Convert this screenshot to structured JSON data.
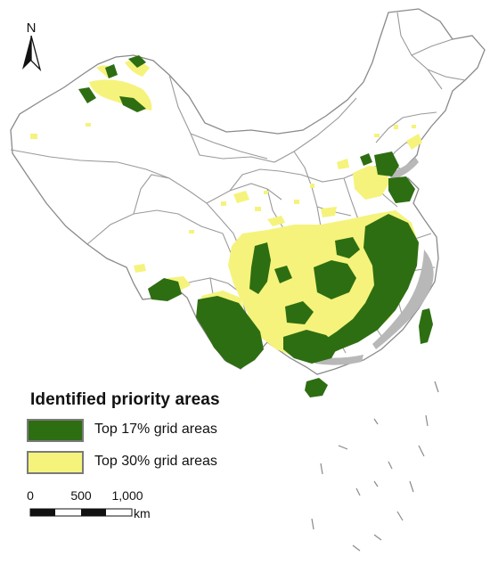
{
  "north_arrow": {
    "label": "N"
  },
  "legend": {
    "title": "Identified priority areas",
    "items": [
      {
        "label": "Top 17% grid areas",
        "color": "#2e6e12"
      },
      {
        "label": "Top 30% grid areas",
        "color": "#f5f37c"
      }
    ]
  },
  "scale_bar": {
    "ticks": [
      "0",
      "500",
      "1,000"
    ],
    "unit": "km"
  },
  "colors": {
    "boundary": "#9a9a9a",
    "outline": "#7d7d7d",
    "coast_gray": "#b8b8b8",
    "top17": "#2e6e12",
    "top30": "#f5f37c"
  }
}
